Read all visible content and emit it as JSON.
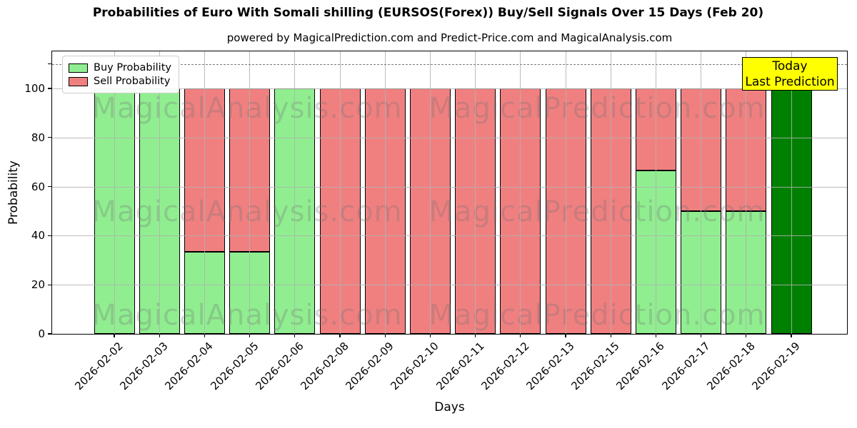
{
  "chart_data": {
    "type": "bar",
    "stacked": true,
    "title": "Probabilities of Euro With Somali shilling (EURSOS(Forex)) Buy/Sell Signals Over 15 Days (Feb 20)",
    "subtitle": "powered by MagicalPrediction.com and Predict-Price.com and MagicalAnalysis.com",
    "xlabel": "Days",
    "ylabel": "Probability",
    "ylim": [
      0,
      115
    ],
    "yticks": [
      0,
      20,
      40,
      60,
      80,
      100
    ],
    "reference_line_y": 110,
    "grid": true,
    "legend_position": "upper-left",
    "categories": [
      "2026-02-02",
      "2026-02-03",
      "2026-02-04",
      "2026-02-05",
      "2026-02-06",
      "2026-02-08",
      "2026-02-09",
      "2026-02-10",
      "2026-02-11",
      "2026-02-12",
      "2026-02-13",
      "2026-02-15",
      "2026-02-16",
      "2026-02-17",
      "2026-02-18",
      "2026-02-19"
    ],
    "series": [
      {
        "name": "Buy Probability",
        "color": "#90ee90",
        "values": [
          100,
          100,
          33.33,
          33.33,
          100,
          0,
          0,
          0,
          0,
          0,
          0,
          0,
          66.67,
          50,
          50,
          null
        ]
      },
      {
        "name": "Sell Probability",
        "color": "#f08080",
        "values": [
          0,
          0,
          66.67,
          66.67,
          0,
          100,
          100,
          100,
          100,
          100,
          100,
          100,
          33.33,
          50,
          50,
          null
        ]
      },
      {
        "name": "Today Prediction",
        "color": "#008000",
        "values": [
          null,
          null,
          null,
          null,
          null,
          null,
          null,
          null,
          null,
          null,
          null,
          null,
          null,
          null,
          null,
          100
        ]
      }
    ],
    "annotation": {
      "line1": "Today",
      "line2": "Last Prediction",
      "bg_color": "#ffff00"
    },
    "watermarks": [
      "MagicalAnalysis.com",
      "MagicalPrediction.com"
    ],
    "colors": {
      "grid": "#b0b0b0",
      "reference_line": "#7a7a7a",
      "bar_edge": "#000000"
    }
  }
}
